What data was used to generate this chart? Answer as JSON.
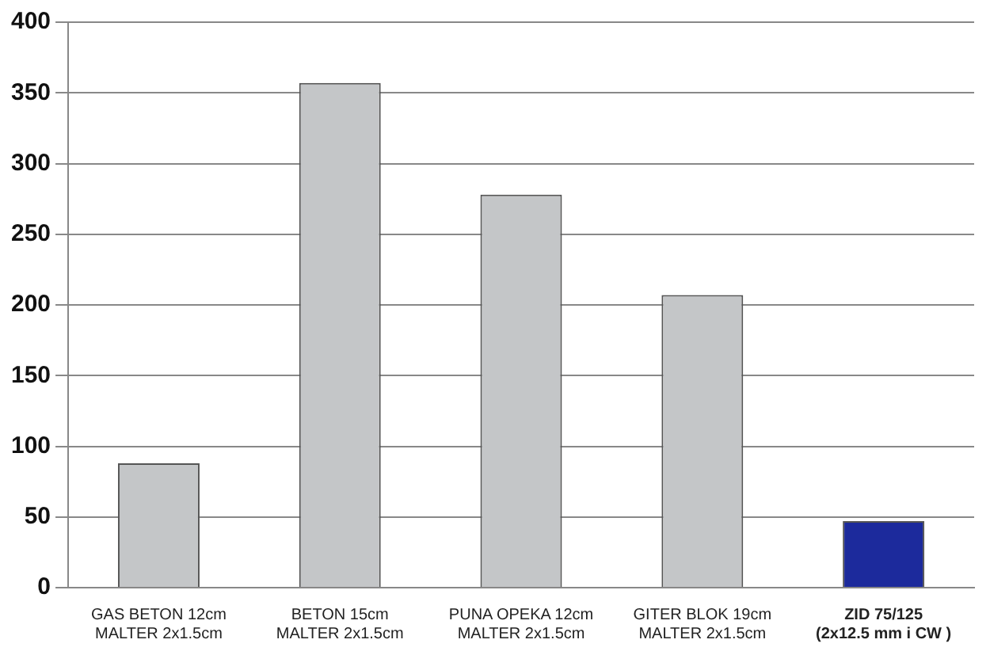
{
  "chart_data": {
    "type": "bar",
    "categories": [
      "GAS BETON 12cm\nMALTER 2x1.5cm",
      "BETON 15cm\nMALTER 2x1.5cm",
      "PUNA OPEKA 12cm\nMALTER 2x1.5cm",
      "GITER BLOK 19cm\nMALTER 2x1.5cm",
      "ZID 75/125\n(2x12.5 mm i CW )"
    ],
    "values": [
      88,
      357,
      278,
      207,
      47
    ],
    "colors": [
      "#c4c6c8",
      "#c4c6c8",
      "#c4c6c8",
      "#c4c6c8",
      "#1c2a9c"
    ],
    "ylim": [
      0,
      400
    ],
    "yticks": [
      0,
      50,
      100,
      150,
      200,
      250,
      300,
      350,
      400
    ],
    "grid": "y",
    "legend": false
  }
}
